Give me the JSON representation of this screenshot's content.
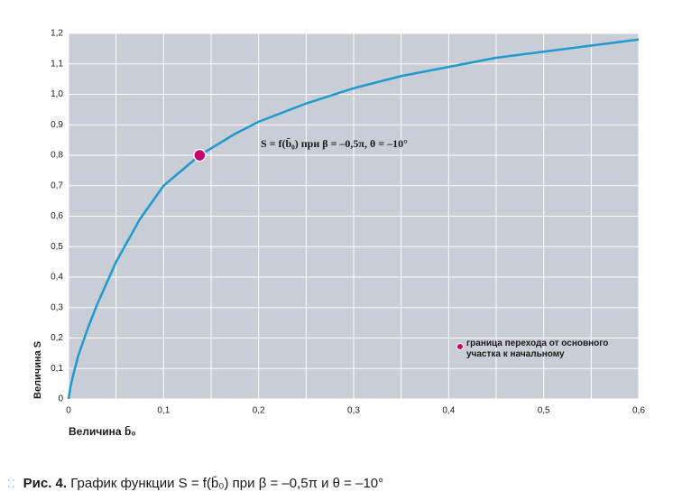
{
  "chart_data": {
    "type": "line",
    "xlabel": "Величина b̄₀",
    "ylabel": "Величина S",
    "annotation": "S = f(b̄₀) при β = –0,5π, θ = –10°",
    "xlim": [
      0,
      0.6
    ],
    "ylim": [
      0,
      1.2
    ],
    "xticks": [
      0,
      {
        "value": 0.1,
        "label": "0,1"
      },
      {
        "value": 0.2,
        "label": "0,2"
      },
      {
        "value": 0.3,
        "label": "0,3"
      },
      {
        "value": 0.4,
        "label": "0,4"
      },
      {
        "value": 0.5,
        "label": "0,5"
      },
      {
        "value": 0.6,
        "label": "0,6"
      }
    ],
    "x_minor_grid": [
      0.05,
      0.15,
      0.25,
      0.35,
      0.45,
      0.55
    ],
    "yticks": [
      0,
      {
        "value": 0.1,
        "label": "0,1"
      },
      {
        "value": 0.2,
        "label": "0,2"
      },
      {
        "value": 0.3,
        "label": "0,3"
      },
      {
        "value": 0.4,
        "label": "0,4"
      },
      {
        "value": 0.5,
        "label": "0,5"
      },
      {
        "value": 0.6,
        "label": "0,6"
      },
      {
        "value": 0.7,
        "label": "0,7"
      },
      {
        "value": 0.8,
        "label": "0,8"
      },
      {
        "value": 0.9,
        "label": "0,9"
      },
      {
        "value": 1.0,
        "label": "1,0"
      },
      {
        "value": 1.1,
        "label": "1,1"
      },
      {
        "value": 1.2,
        "label": "1,2"
      }
    ],
    "grid": true,
    "plot_background": "#c8cdd6",
    "series": [
      {
        "color": "#1e9ad0",
        "x": [
          0,
          0.002,
          0.005,
          0.01,
          0.02,
          0.03,
          0.05,
          0.075,
          0.1,
          0.138,
          0.175,
          0.2,
          0.25,
          0.3,
          0.35,
          0.4,
          0.45,
          0.5,
          0.55,
          0.6
        ],
        "values": [
          0,
          0.04,
          0.08,
          0.14,
          0.23,
          0.31,
          0.45,
          0.59,
          0.7,
          0.8,
          0.87,
          0.91,
          0.97,
          1.02,
          1.06,
          1.09,
          1.12,
          1.14,
          1.16,
          1.18
        ]
      },
      {
        "name": "граница перехода от основного участка к начальному",
        "color": "#c8006e",
        "marker": "dot",
        "x": [
          0.138
        ],
        "values": [
          0.8
        ]
      }
    ]
  },
  "caption": {
    "label": "Рис. 4.",
    "text": "График функции S = f(b̄₀) при β = –0,5π и θ = –10°"
  }
}
